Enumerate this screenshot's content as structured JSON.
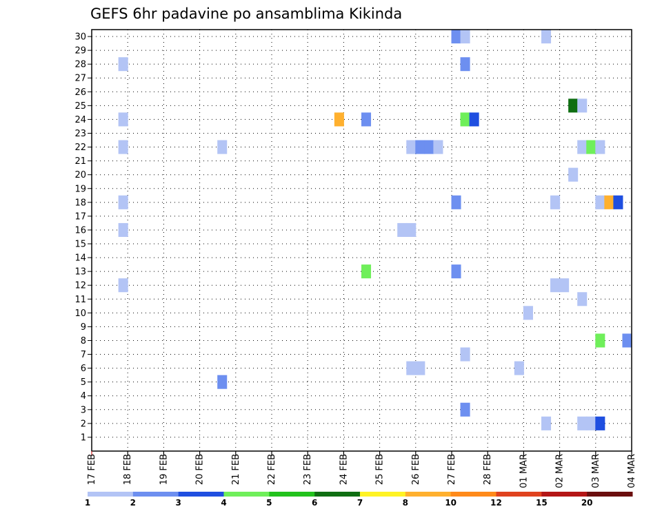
{
  "chart_data": {
    "type": "heatmap",
    "title": "GEFS 6hr padavine po ansamblima Kikinda",
    "xlabel": "",
    "ylabel": "",
    "y_ticks": [
      1,
      2,
      3,
      4,
      5,
      6,
      7,
      8,
      9,
      10,
      11,
      12,
      13,
      14,
      15,
      16,
      17,
      18,
      19,
      20,
      21,
      22,
      23,
      24,
      25,
      26,
      27,
      28,
      29,
      30
    ],
    "ylim": [
      0,
      30.5
    ],
    "x_ticks": [
      "17 FEB",
      "18 FEB",
      "19 FEB",
      "20 FEB",
      "21 FEB",
      "22 FEB",
      "23 FEB",
      "24 FEB",
      "25 FEB",
      "26 FEB",
      "27 FEB",
      "28 FEB",
      "01 MAR",
      "02 MAR",
      "03 MAR",
      "04 MAR"
    ],
    "xlim_days": [
      0,
      15
    ],
    "grid": true,
    "colorbar": {
      "placement": "bottom",
      "labels": [
        "1",
        "2",
        "3",
        "4",
        "5",
        "6",
        "7",
        "8",
        "10",
        "12",
        "15",
        "20"
      ],
      "colors": [
        "#b3c4f5",
        "#6d8ff0",
        "#1f4fe0",
        "#6fef5a",
        "#22c21c",
        "#0f6e12",
        "#fff324",
        "#ffb02e",
        "#ff8a1a",
        "#e0421e",
        "#b41616",
        "#6b0e0e"
      ]
    },
    "cells": [
      {
        "d": 10.0,
        "m": 30,
        "c": 1
      },
      {
        "d": 10.25,
        "m": 30,
        "c": 0
      },
      {
        "d": 12.5,
        "m": 30,
        "c": 0
      },
      {
        "d": 0.75,
        "m": 28,
        "c": 0
      },
      {
        "d": 10.25,
        "m": 28,
        "c": 1
      },
      {
        "d": 13.25,
        "m": 25,
        "c": 5
      },
      {
        "d": 13.5,
        "m": 25,
        "c": 0
      },
      {
        "d": 0.75,
        "m": 24,
        "c": 0
      },
      {
        "d": 6.75,
        "m": 24,
        "c": 7
      },
      {
        "d": 7.5,
        "m": 24,
        "c": 1
      },
      {
        "d": 10.25,
        "m": 24,
        "c": 3
      },
      {
        "d": 10.5,
        "m": 24,
        "c": 2
      },
      {
        "d": 0.75,
        "m": 22,
        "c": 0
      },
      {
        "d": 3.5,
        "m": 22,
        "c": 0
      },
      {
        "d": 8.75,
        "m": 22,
        "c": 0
      },
      {
        "d": 9.0,
        "m": 22,
        "c": 1
      },
      {
        "d": 9.25,
        "m": 22,
        "c": 1
      },
      {
        "d": 9.5,
        "m": 22,
        "c": 0
      },
      {
        "d": 13.5,
        "m": 22,
        "c": 0
      },
      {
        "d": 13.75,
        "m": 22,
        "c": 3
      },
      {
        "d": 14.0,
        "m": 22,
        "c": 0
      },
      {
        "d": 13.25,
        "m": 20,
        "c": 0
      },
      {
        "d": 0.75,
        "m": 18,
        "c": 0
      },
      {
        "d": 10.0,
        "m": 18,
        "c": 1
      },
      {
        "d": 12.75,
        "m": 18,
        "c": 0
      },
      {
        "d": 14.0,
        "m": 18,
        "c": 0
      },
      {
        "d": 14.25,
        "m": 18,
        "c": 7
      },
      {
        "d": 14.5,
        "m": 18,
        "c": 2
      },
      {
        "d": 0.75,
        "m": 16,
        "c": 0
      },
      {
        "d": 8.5,
        "m": 16,
        "c": 0
      },
      {
        "d": 8.75,
        "m": 16,
        "c": 0
      },
      {
        "d": 7.5,
        "m": 13,
        "c": 3
      },
      {
        "d": 10.0,
        "m": 13,
        "c": 1
      },
      {
        "d": 0.75,
        "m": 12,
        "c": 0
      },
      {
        "d": 12.75,
        "m": 12,
        "c": 0
      },
      {
        "d": 13.0,
        "m": 12,
        "c": 0
      },
      {
        "d": 13.5,
        "m": 11,
        "c": 0
      },
      {
        "d": 12.0,
        "m": 10,
        "c": 0
      },
      {
        "d": 14.0,
        "m": 8,
        "c": 3
      },
      {
        "d": 14.75,
        "m": 8,
        "c": 1
      },
      {
        "d": 10.25,
        "m": 7,
        "c": 0
      },
      {
        "d": 8.75,
        "m": 6,
        "c": 0
      },
      {
        "d": 9.0,
        "m": 6,
        "c": 0
      },
      {
        "d": 11.75,
        "m": 6,
        "c": 0
      },
      {
        "d": 3.5,
        "m": 5,
        "c": 1
      },
      {
        "d": 10.25,
        "m": 3,
        "c": 1
      },
      {
        "d": 12.5,
        "m": 2,
        "c": 0
      },
      {
        "d": 13.5,
        "m": 2,
        "c": 0
      },
      {
        "d": 13.75,
        "m": 2,
        "c": 0
      },
      {
        "d": 14.0,
        "m": 2,
        "c": 2
      }
    ]
  }
}
